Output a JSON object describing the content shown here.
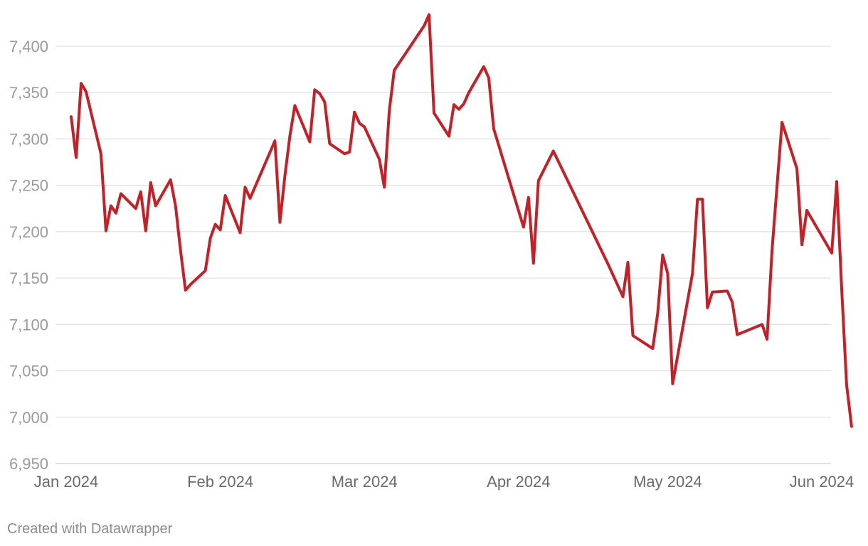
{
  "chart_data": {
    "type": "line",
    "title": "",
    "xlabel": "",
    "ylabel": "",
    "ylim": [
      6950,
      7450
    ],
    "xlim": [
      "2024-01-01",
      "2024-06-01"
    ],
    "grid": true,
    "y_ticks": [
      6950,
      7000,
      7050,
      7100,
      7150,
      7200,
      7250,
      7300,
      7350,
      7400
    ],
    "y_tick_labels": [
      "6,950",
      "7,000",
      "7,050",
      "7,100",
      "7,150",
      "7,200",
      "7,250",
      "7,300",
      "7,350",
      "7,400"
    ],
    "x_ticks": [
      {
        "date": "2024-01-01",
        "label": "Jan 2024"
      },
      {
        "date": "2024-02-01",
        "label": "Feb 2024"
      },
      {
        "date": "2024-03-01",
        "label": "Mar 2024"
      },
      {
        "date": "2024-04-01",
        "label": "Apr 2024"
      },
      {
        "date": "2024-05-01",
        "label": "May 2024"
      },
      {
        "date": "2024-06-01",
        "label": "Jun 2024"
      }
    ],
    "series": [
      {
        "color": "#c62026",
        "points": [
          [
            "2024-01-02",
            7324
          ],
          [
            "2024-01-03",
            7280
          ],
          [
            "2024-01-04",
            7360
          ],
          [
            "2024-01-05",
            7351
          ],
          [
            "2024-01-08",
            7284
          ],
          [
            "2024-01-09",
            7201
          ],
          [
            "2024-01-10",
            7228
          ],
          [
            "2024-01-11",
            7220
          ],
          [
            "2024-01-12",
            7241
          ],
          [
            "2024-01-15",
            7225
          ],
          [
            "2024-01-16",
            7243
          ],
          [
            "2024-01-17",
            7201
          ],
          [
            "2024-01-18",
            7253
          ],
          [
            "2024-01-19",
            7228
          ],
          [
            "2024-01-22",
            7256
          ],
          [
            "2024-01-23",
            7228
          ],
          [
            "2024-01-24",
            7180
          ],
          [
            "2024-01-25",
            7137
          ],
          [
            "2024-01-26",
            7143
          ],
          [
            "2024-01-29",
            7158
          ],
          [
            "2024-01-30",
            7193
          ],
          [
            "2024-01-31",
            7208
          ],
          [
            "2024-02-01",
            7202
          ],
          [
            "2024-02-02",
            7239
          ],
          [
            "2024-02-05",
            7199
          ],
          [
            "2024-02-06",
            7248
          ],
          [
            "2024-02-07",
            7236
          ],
          [
            "2024-02-12",
            7298
          ],
          [
            "2024-02-13",
            7210
          ],
          [
            "2024-02-14",
            7260
          ],
          [
            "2024-02-15",
            7303
          ],
          [
            "2024-02-16",
            7336
          ],
          [
            "2024-02-19",
            7297
          ],
          [
            "2024-02-20",
            7353
          ],
          [
            "2024-02-21",
            7349
          ],
          [
            "2024-02-22",
            7340
          ],
          [
            "2024-02-23",
            7295
          ],
          [
            "2024-02-26",
            7284
          ],
          [
            "2024-02-27",
            7286
          ],
          [
            "2024-02-28",
            7329
          ],
          [
            "2024-02-29",
            7317
          ],
          [
            "2024-03-01",
            7313
          ],
          [
            "2024-03-04",
            7278
          ],
          [
            "2024-03-05",
            7248
          ],
          [
            "2024-03-06",
            7330
          ],
          [
            "2024-03-07",
            7374
          ],
          [
            "2024-03-13",
            7422
          ],
          [
            "2024-03-14",
            7434
          ],
          [
            "2024-03-15",
            7328
          ],
          [
            "2024-03-18",
            7303
          ],
          [
            "2024-03-19",
            7337
          ],
          [
            "2024-03-20",
            7332
          ],
          [
            "2024-03-21",
            7338
          ],
          [
            "2024-03-22",
            7350
          ],
          [
            "2024-03-25",
            7378
          ],
          [
            "2024-03-26",
            7366
          ],
          [
            "2024-03-27",
            7311
          ],
          [
            "2024-04-02",
            7205
          ],
          [
            "2024-04-03",
            7237
          ],
          [
            "2024-04-04",
            7166
          ],
          [
            "2024-04-05",
            7255
          ],
          [
            "2024-04-08",
            7287
          ],
          [
            "2024-04-19",
            7165
          ],
          [
            "2024-04-22",
            7130
          ],
          [
            "2024-04-23",
            7167
          ],
          [
            "2024-04-24",
            7088
          ],
          [
            "2024-04-28",
            7074
          ],
          [
            "2024-04-29",
            7112
          ],
          [
            "2024-04-30",
            7175
          ],
          [
            "2024-05-01",
            7155
          ],
          [
            "2024-05-02",
            7036
          ],
          [
            "2024-05-06",
            7155
          ],
          [
            "2024-05-07",
            7235
          ],
          [
            "2024-05-08",
            7235
          ],
          [
            "2024-05-09",
            7118
          ],
          [
            "2024-05-10",
            7135
          ],
          [
            "2024-05-13",
            7136
          ],
          [
            "2024-05-14",
            7124
          ],
          [
            "2024-05-15",
            7089
          ],
          [
            "2024-05-20",
            7100
          ],
          [
            "2024-05-21",
            7084
          ],
          [
            "2024-05-22",
            7180
          ],
          [
            "2024-05-24",
            7318
          ],
          [
            "2024-05-27",
            7268
          ],
          [
            "2024-05-28",
            7186
          ],
          [
            "2024-05-29",
            7223
          ],
          [
            "2024-06-03",
            7177
          ],
          [
            "2024-06-04",
            7254
          ],
          [
            "2024-06-05",
            7140
          ],
          [
            "2024-06-06",
            7035
          ],
          [
            "2024-06-07",
            6990
          ]
        ]
      }
    ]
  },
  "footer": {
    "credit": "Created with Datawrapper"
  }
}
